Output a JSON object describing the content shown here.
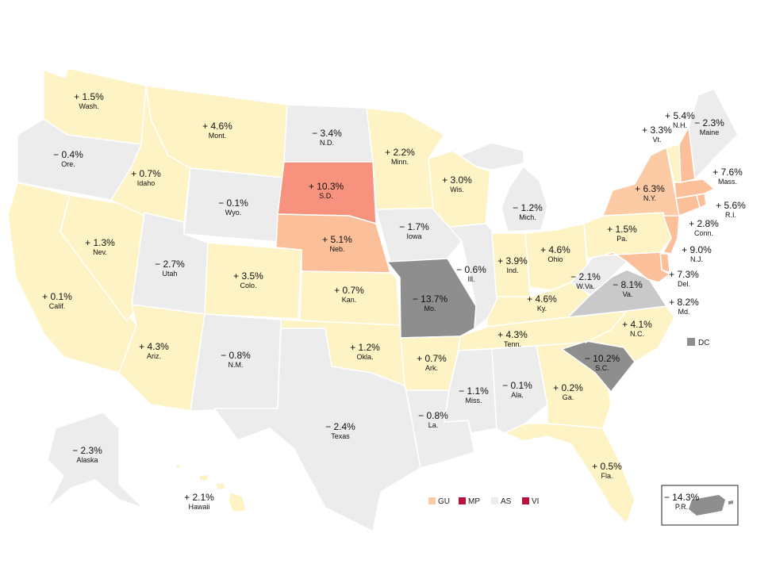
{
  "colors": {
    "pos_low": "#fdf3c4",
    "pos_mid_light": "#fccaa4",
    "pos_mid": "#fbbf99",
    "pos_high": "#f6927d",
    "neg_low": "#ececec",
    "neg_mid": "#c9c9c9",
    "neg_high": "#8e8e8e",
    "mp_vi": "#b5123f"
  },
  "states": [
    {
      "id": "WA",
      "abbr": "Wash.",
      "value": "+ 1.5%"
    },
    {
      "id": "OR",
      "abbr": "Ore.",
      "value": "− 0.4%"
    },
    {
      "id": "CA",
      "abbr": "Calif.",
      "value": "+ 0.1%"
    },
    {
      "id": "NV",
      "abbr": "Nev.",
      "value": "+ 1.3%"
    },
    {
      "id": "ID",
      "abbr": "Idaho",
      "value": "+ 0.7%"
    },
    {
      "id": "MT",
      "abbr": "Mont.",
      "value": "+ 4.6%"
    },
    {
      "id": "WY",
      "abbr": "Wyo.",
      "value": "− 0.1%"
    },
    {
      "id": "UT",
      "abbr": "Utah",
      "value": "− 2.7%"
    },
    {
      "id": "AZ",
      "abbr": "Ariz.",
      "value": "+ 4.3%"
    },
    {
      "id": "CO",
      "abbr": "Colo.",
      "value": "+ 3.5%"
    },
    {
      "id": "NM",
      "abbr": "N.M.",
      "value": "− 0.8%"
    },
    {
      "id": "ND",
      "abbr": "N.D.",
      "value": "− 3.4%"
    },
    {
      "id": "SD",
      "abbr": "S.D.",
      "value": "+ 10.3%"
    },
    {
      "id": "NE",
      "abbr": "Neb.",
      "value": "+ 5.1%"
    },
    {
      "id": "KS",
      "abbr": "Kan.",
      "value": "+ 0.7%"
    },
    {
      "id": "OK",
      "abbr": "Okla.",
      "value": "+ 1.2%"
    },
    {
      "id": "TX",
      "abbr": "Texas",
      "value": "− 2.4%"
    },
    {
      "id": "MN",
      "abbr": "Minn.",
      "value": "+ 2.2%"
    },
    {
      "id": "IA",
      "abbr": "Iowa",
      "value": "− 1.7%"
    },
    {
      "id": "MO",
      "abbr": "Mo.",
      "value": "− 13.7%"
    },
    {
      "id": "AR",
      "abbr": "Ark.",
      "value": "+ 0.7%"
    },
    {
      "id": "LA",
      "abbr": "La.",
      "value": "− 0.8%"
    },
    {
      "id": "WI",
      "abbr": "Wis.",
      "value": "+ 3.0%"
    },
    {
      "id": "IL",
      "abbr": "Ill.",
      "value": "− 0.6%"
    },
    {
      "id": "MI",
      "abbr": "Mich.",
      "value": "− 1.2%"
    },
    {
      "id": "IN",
      "abbr": "Ind.",
      "value": "+ 3.9%"
    },
    {
      "id": "OH",
      "abbr": "Ohio",
      "value": "+ 4.6%"
    },
    {
      "id": "KY",
      "abbr": "Ky.",
      "value": "+ 4.6%"
    },
    {
      "id": "TN",
      "abbr": "Tenn.",
      "value": "+ 4.3%"
    },
    {
      "id": "MS",
      "abbr": "Miss.",
      "value": "− 1.1%"
    },
    {
      "id": "AL",
      "abbr": "Ala.",
      "value": "− 0.1%"
    },
    {
      "id": "GA",
      "abbr": "Ga.",
      "value": "+ 0.2%"
    },
    {
      "id": "FL",
      "abbr": "Fla.",
      "value": "+ 0.5%"
    },
    {
      "id": "SC",
      "abbr": "S.C.",
      "value": "− 10.2%"
    },
    {
      "id": "NC",
      "abbr": "N.C.",
      "value": "+ 4.1%"
    },
    {
      "id": "VA",
      "abbr": "Va.",
      "value": "− 8.1%"
    },
    {
      "id": "WV",
      "abbr": "W.Va.",
      "value": "− 2.1%"
    },
    {
      "id": "PA",
      "abbr": "Pa.",
      "value": "+ 1.5%"
    },
    {
      "id": "NY",
      "abbr": "N.Y.",
      "value": "+ 6.3%"
    },
    {
      "id": "VT",
      "abbr": "Vt.",
      "value": "+ 3.3%"
    },
    {
      "id": "NH",
      "abbr": "N.H.",
      "value": "+ 5.4%"
    },
    {
      "id": "ME",
      "abbr": "Maine",
      "value": "− 2.3%"
    },
    {
      "id": "MA",
      "abbr": "Mass.",
      "value": "+ 7.6%"
    },
    {
      "id": "RI",
      "abbr": "R.I.",
      "value": "+ 5.6%"
    },
    {
      "id": "CT",
      "abbr": "Conn.",
      "value": "+ 2.8%"
    },
    {
      "id": "NJ",
      "abbr": "N.J.",
      "value": "+ 9.0%"
    },
    {
      "id": "DE",
      "abbr": "Del.",
      "value": "+ 7.3%"
    },
    {
      "id": "MD",
      "abbr": "Md.",
      "value": "+ 8.2%"
    },
    {
      "id": "AK",
      "abbr": "Alaska",
      "value": "− 2.3%"
    },
    {
      "id": "HI",
      "abbr": "Hawaii",
      "value": "+ 2.1%"
    },
    {
      "id": "PR",
      "abbr": "P.R.",
      "value": "− 14.3%"
    }
  ],
  "legend": {
    "dc": "DC",
    "gu": "GU",
    "mp": "MP",
    "as": "AS",
    "vi": "VI"
  }
}
